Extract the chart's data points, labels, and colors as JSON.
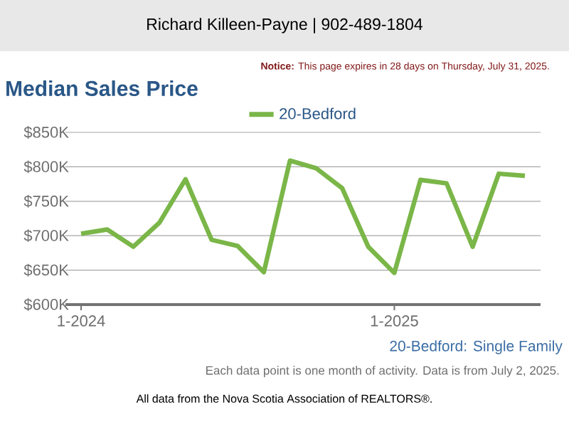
{
  "chart_data": {
    "type": "line",
    "title": "Median Sales Price",
    "subtitle": "20-Bedford: Single Family",
    "categories": [
      "1-2024",
      null,
      null,
      null,
      null,
      null,
      null,
      null,
      null,
      null,
      null,
      null,
      "1-2025",
      null,
      null,
      null,
      null,
      null
    ],
    "series": [
      {
        "name": "20-Bedford",
        "color": "#7ab648",
        "values": [
          703,
          709,
          684,
          719,
          782,
          694,
          685,
          647,
          809,
          798,
          769,
          684,
          646,
          781,
          776,
          684,
          790,
          787
        ]
      }
    ],
    "ylim": [
      600,
      850
    ],
    "yticks": [
      {
        "value": 600,
        "label": "$600K"
      },
      {
        "value": 650,
        "label": "$650K"
      },
      {
        "value": 700,
        "label": "$700K"
      },
      {
        "value": 750,
        "label": "$750K"
      },
      {
        "value": 800,
        "label": "$800K"
      },
      {
        "value": 850,
        "label": "$850K"
      }
    ],
    "grid": "y",
    "legend": "top",
    "marker": "none",
    "line_style": "solid",
    "annotations": [
      "Richard Killeen-Payne | 902-489-1804",
      "**Notice:** This page expires in 28 days on Thursday, July 31, 2025.",
      "Each data point is one month of activity. Data is from July 2, 2025.",
      "All data from the Nova Scotia Association of REALTORS®."
    ]
  }
}
